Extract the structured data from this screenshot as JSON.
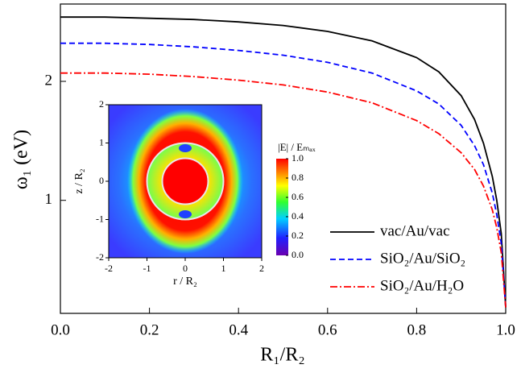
{
  "chart_data": [
    {
      "type": "line",
      "xlabel": "R₁/R₂",
      "ylabel": "ω₁ (eV)",
      "x": [
        0,
        0.1,
        0.2,
        0.3,
        0.4,
        0.5,
        0.6,
        0.7,
        0.8,
        0.85,
        0.9,
        0.93,
        0.95,
        0.97,
        0.98,
        0.99,
        1.0
      ],
      "series": [
        {
          "name": "vac/Au/vac",
          "color": "#000000",
          "linestyle": "solid",
          "values": [
            2.54,
            2.54,
            2.53,
            2.52,
            2.5,
            2.47,
            2.42,
            2.34,
            2.2,
            2.08,
            1.88,
            1.68,
            1.48,
            1.2,
            1.0,
            0.72,
            0.1
          ]
        },
        {
          "name": "SiO₂/Au/SiO₂",
          "color": "#0000ff",
          "linestyle": "dashed",
          "values": [
            2.32,
            2.32,
            2.31,
            2.29,
            2.26,
            2.22,
            2.16,
            2.07,
            1.92,
            1.81,
            1.63,
            1.46,
            1.3,
            1.06,
            0.88,
            0.64,
            0.1
          ]
        },
        {
          "name": "SiO₂/Au/H₂O",
          "color": "#ff0000",
          "linestyle": "dashdot",
          "values": [
            2.07,
            2.07,
            2.06,
            2.04,
            2.01,
            1.97,
            1.91,
            1.82,
            1.67,
            1.56,
            1.4,
            1.26,
            1.12,
            0.92,
            0.77,
            0.56,
            0.1
          ]
        }
      ],
      "xlim": [
        0,
        1.0
      ],
      "xticks": [
        {
          "value": 0,
          "label": "0.0"
        },
        {
          "value": 0.2,
          "label": "0.2"
        },
        {
          "value": 0.4,
          "label": "0.4"
        },
        {
          "value": 0.6,
          "label": "0.6"
        },
        {
          "value": 0.8,
          "label": "0.8"
        },
        {
          "value": 1.0,
          "label": "1.0"
        }
      ],
      "ylim": [
        0.05,
        2.65
      ],
      "yticks": [
        1,
        2
      ],
      "legend": "lower right"
    },
    {
      "type": "heatmap",
      "xlabel": "r / R₂",
      "ylabel": "z / R₂",
      "xlim": [
        -2,
        2
      ],
      "ylim": [
        -2,
        2
      ],
      "xticks": [
        -2,
        -1,
        0,
        1,
        2
      ],
      "yticks": [
        -2,
        -1,
        0,
        1,
        2
      ],
      "colorbar": {
        "label": "|E| / Eₘₐₓ",
        "lim": [
          0,
          1.0
        ],
        "ticks": [
          {
            "value": 0,
            "label": "0.0"
          },
          {
            "value": 0.2,
            "label": "0.2"
          },
          {
            "value": 0.4,
            "label": "0.4"
          },
          {
            "value": 0.6,
            "label": "0.6"
          },
          {
            "value": 0.8,
            "label": "0.8"
          },
          {
            "value": 1.0,
            "label": "1.0"
          }
        ]
      }
    }
  ]
}
